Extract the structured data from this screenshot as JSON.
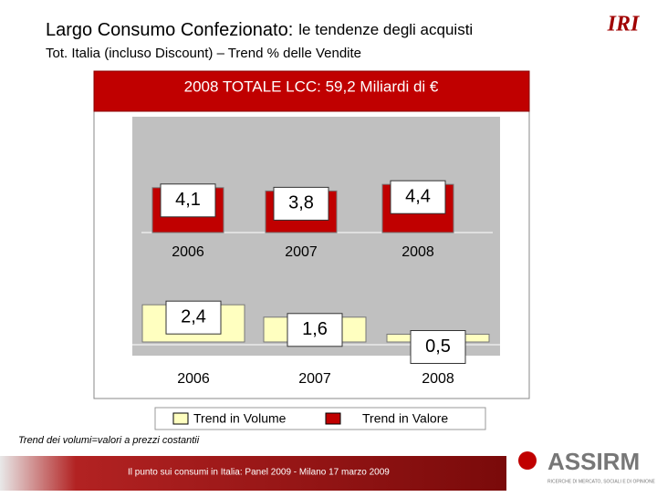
{
  "header": {
    "title": "Largo Consumo Confezionato:",
    "title_rest": "le tendenze degli acquisti",
    "subtitle": "Tot. Italia (incluso Discount) – Trend % delle Vendite",
    "logo": "IRI"
  },
  "banner": "2008 TOTALE LCC: 59,2 Miliardi di €",
  "chart_data": [
    {
      "type": "bar",
      "categories": [
        "2006",
        "2007",
        "2008"
      ],
      "series": [
        {
          "name": "Trend in Valore",
          "color": "#c00000",
          "values": [
            4.1,
            3.8,
            4.4
          ],
          "value_labels": [
            "4,1",
            "3,8",
            "4,4"
          ]
        }
      ]
    },
    {
      "type": "bar",
      "categories": [
        "2006",
        "2007",
        "2008"
      ],
      "series": [
        {
          "name": "Trend in Volume",
          "color": "#ffffc0",
          "values": [
            2.4,
            1.6,
            0.5
          ],
          "value_labels": [
            "2,4",
            "1,6",
            "0,5"
          ]
        }
      ]
    }
  ],
  "footnote": "Trend dei volumi=valori a prezzi costantii",
  "footer": {
    "text": "Il punto sui consumi in Italia: Panel 2009 - Milano 17 marzo 2009",
    "brand": "ASSIRM",
    "brand_sub": "RICERCHE DI MERCATO, SOCIALI E DI OPINIONE"
  }
}
